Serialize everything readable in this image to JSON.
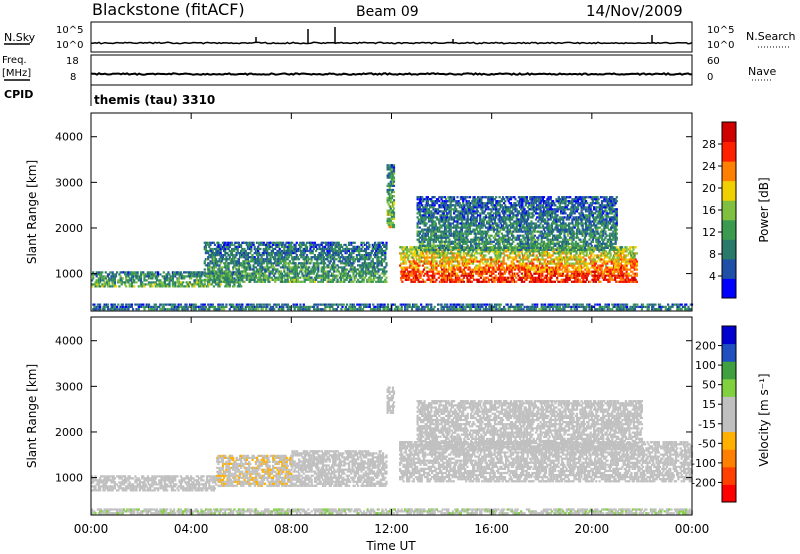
{
  "header": {
    "station": "Blackstone (fitACF)",
    "beam": "Beam 09",
    "date": "14/Nov/2009"
  },
  "strip_panels": {
    "nsky_label": "N.Sky",
    "nsky_ticks": [
      "10^5",
      "10^0"
    ],
    "nsearch_label": "N.Search",
    "nsearch_ticks": [
      "10^5",
      "10^0"
    ],
    "freq_label": "Freq.",
    "freq_unit": "[MHz]",
    "freq_ticks": [
      "18",
      "8"
    ],
    "nave_label": "Nave",
    "nave_ticks": [
      "60",
      "0"
    ],
    "cpid_label": "CPID",
    "cpid_value": "themis (tau) 3310"
  },
  "chart_data": [
    {
      "type": "heatmap",
      "ylabel": "Slant Range [km]",
      "yticks": [
        "4000",
        "3000",
        "2000",
        "1000"
      ],
      "ylim": [
        180,
        4520
      ],
      "xlim": [
        0,
        24
      ],
      "colorbar": {
        "label": "Power [dB]",
        "ticks": [
          "28",
          "24",
          "20",
          "16",
          "12",
          "8",
          "4"
        ],
        "range": [
          0,
          30
        ],
        "colors": [
          "#0000ff",
          "#1f4fa6",
          "#2a7a6a",
          "#3a9a50",
          "#7fc040",
          "#f0d000",
          "#ff8000",
          "#ff2000",
          "#d00000"
        ]
      },
      "regions": [
        {
          "t0": 0.0,
          "t1": 6.0,
          "r0": 700,
          "r1": 1050,
          "intensity": 0.45
        },
        {
          "t0": 4.5,
          "t1": 11.8,
          "r0": 800,
          "r1": 1700,
          "intensity": 0.4
        },
        {
          "t0": 11.8,
          "t1": 12.1,
          "r0": 2000,
          "r1": 3400,
          "intensity": 0.5
        },
        {
          "t0": 12.3,
          "t1": 21.8,
          "r0": 800,
          "r1": 1600,
          "intensity": 0.9
        },
        {
          "t0": 13.0,
          "t1": 21.0,
          "r0": 1500,
          "r1": 2700,
          "intensity": 0.35
        },
        {
          "t0": 0.0,
          "t1": 24.0,
          "r0": 200,
          "r1": 350,
          "intensity": 0.3
        }
      ]
    },
    {
      "type": "heatmap",
      "ylabel": "Slant Range [km]",
      "yticks": [
        "4000",
        "3000",
        "2000",
        "1000"
      ],
      "ylim": [
        180,
        4520
      ],
      "xlim": [
        0,
        24
      ],
      "xlabel": "Time UT",
      "xticks": [
        "00:00",
        "04:00",
        "08:00",
        "12:00",
        "16:00",
        "20:00",
        "00:00"
      ],
      "colorbar": {
        "label": "Velocity [m s⁻¹]",
        "ticks": [
          "200",
          "100",
          "50",
          "15",
          "-15",
          "-50",
          "-100",
          "-200"
        ],
        "range": [
          -250,
          250
        ],
        "colors": [
          "#ff0000",
          "#ff4000",
          "#ff8000",
          "#ffb000",
          "#c0c0c0",
          "#c0c0c0",
          "#80d040",
          "#40a040",
          "#2050c0",
          "#0000d0"
        ]
      },
      "regions": [
        {
          "t0": 0.0,
          "t1": 5.0,
          "r0": 700,
          "r1": 1050,
          "vel": 0
        },
        {
          "t0": 5.0,
          "t1": 8.0,
          "r0": 800,
          "r1": 1500,
          "vel": -40
        },
        {
          "t0": 8.0,
          "t1": 11.8,
          "r0": 800,
          "r1": 1600,
          "vel": 30
        },
        {
          "t0": 11.8,
          "t1": 12.1,
          "r0": 2400,
          "r1": 3000,
          "vel": -30
        },
        {
          "t0": 12.3,
          "t1": 24.0,
          "r0": 900,
          "r1": 1800,
          "vel": 0
        },
        {
          "t0": 13.0,
          "t1": 22.0,
          "r0": 1600,
          "r1": 2700,
          "vel": 5
        },
        {
          "t0": 0.0,
          "t1": 24.0,
          "r0": 200,
          "r1": 320,
          "vel": 40
        }
      ]
    }
  ]
}
